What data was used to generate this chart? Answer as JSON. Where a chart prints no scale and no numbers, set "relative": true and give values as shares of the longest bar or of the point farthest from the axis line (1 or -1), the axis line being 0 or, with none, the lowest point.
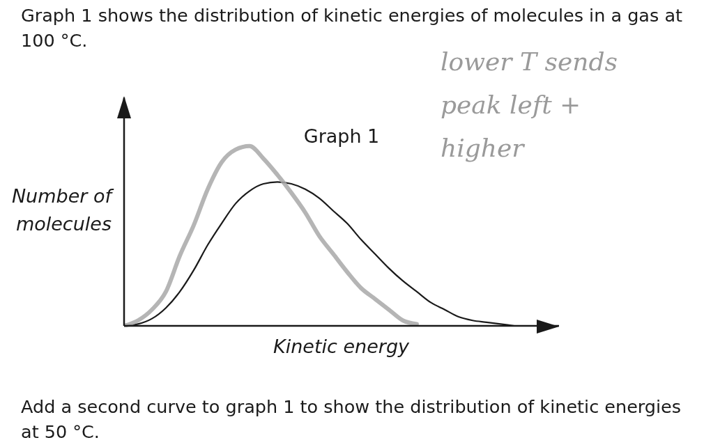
{
  "chart_data": {
    "type": "line",
    "title": "Graph 1",
    "xlabel": "Kinetic energy",
    "ylabel": "Number of molecules",
    "relative": true,
    "marker": "none",
    "categories": [
      null,
      null,
      null,
      null,
      null,
      null,
      null,
      null,
      null,
      null,
      null,
      null,
      null,
      null,
      null,
      null,
      null,
      null,
      null,
      null,
      null,
      null,
      null,
      null,
      null,
      null,
      null,
      null,
      null,
      null,
      null
    ],
    "series": [
      {
        "color": "#1a1a1a",
        "values": [
          0,
          0.01,
          0.04,
          0.1,
          0.19,
          0.31,
          0.45,
          0.57,
          0.68,
          0.75,
          0.79,
          0.8,
          0.79,
          0.76,
          0.71,
          0.64,
          0.57,
          0.48,
          0.4,
          0.32,
          0.25,
          0.19,
          0.13,
          0.09,
          0.05,
          0.03,
          0.02,
          0.01,
          0,
          null,
          null
        ]
      },
      {
        "color": "#a8a8a8",
        "values": [
          0,
          0.03,
          0.09,
          0.19,
          0.39,
          0.56,
          0.76,
          0.91,
          0.98,
          1,
          0.93,
          0.84,
          0.74,
          0.63,
          0.5,
          0.4,
          0.3,
          0.21,
          0.15,
          0.09,
          0.03,
          0.01,
          null,
          null,
          null,
          null,
          null,
          null,
          null,
          null,
          null
        ]
      }
    ],
    "annotations": [
      "Graph 1 shows the distribution of kinetic energies of molecules in a gas at 100 °C.",
      "lower T sends peak left + higher",
      "Add a second curve to graph 1 to show the distribution of kinetic energies at 50 °C."
    ]
  }
}
